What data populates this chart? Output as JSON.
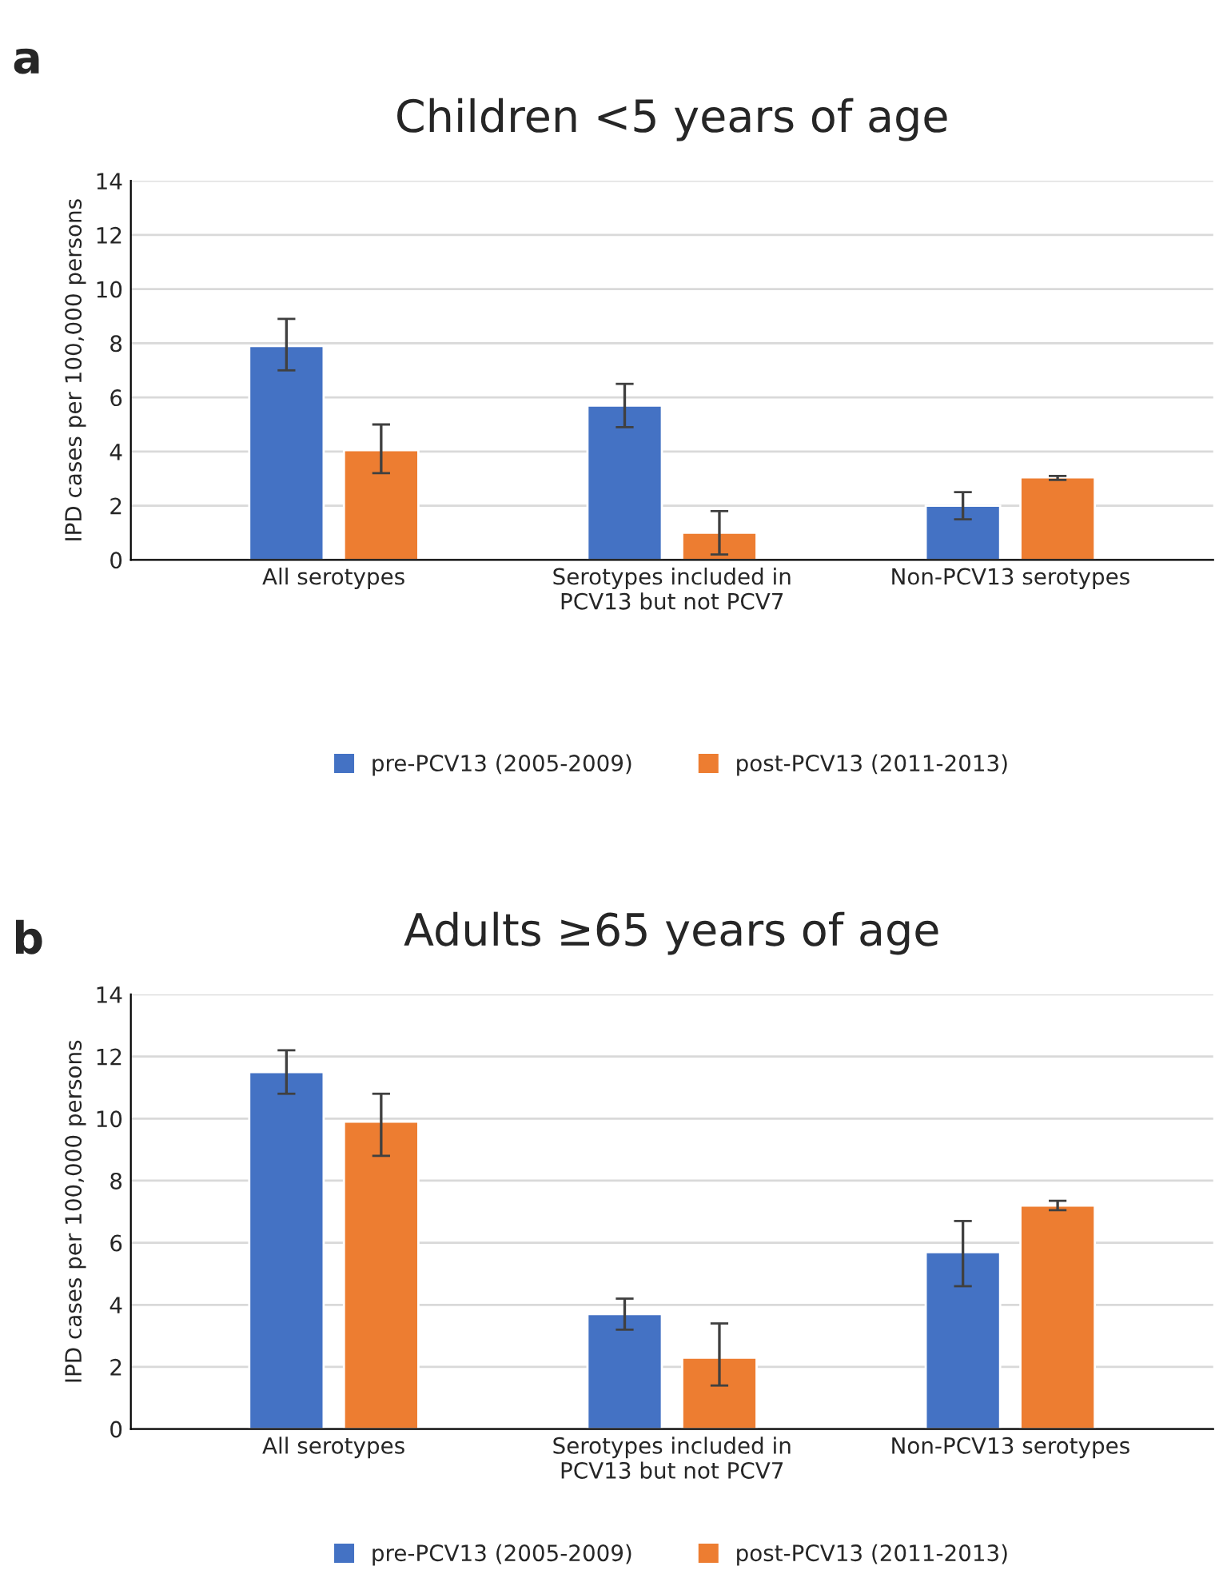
{
  "chart_data": [
    {
      "type": "bar",
      "title": "Children <5 years of age",
      "ylabel": "IPD cases per 100,000 persons",
      "annotations": [
        "a"
      ],
      "categories": [
        "All serotypes",
        "Serotypes included in\nPCV13 but not PCV7",
        "Non-PCV13 serotypes"
      ],
      "series": [
        {
          "name": "pre-PCV13 (2005-2009)",
          "color": "#4472c4",
          "values": [
            7.9,
            5.7,
            2.0
          ],
          "errors": [
            [
              7.0,
              8.9
            ],
            [
              4.9,
              6.5
            ],
            [
              1.5,
              2.5
            ]
          ]
        },
        {
          "name": "post-PCV13 (2011-2013)",
          "color": "#ed7d31",
          "values": [
            4.05,
            1.0,
            3.05
          ],
          "errors": [
            [
              3.2,
              5.0
            ],
            [
              0.2,
              1.8
            ],
            [
              2.95,
              3.1
            ]
          ]
        }
      ],
      "ylim": [
        0,
        14
      ],
      "yticks": [
        0,
        2,
        4,
        6,
        8,
        10,
        12,
        14
      ],
      "grid": "y",
      "legend": "bottom"
    },
    {
      "type": "bar",
      "title": "Adults ≥65 years of age",
      "ylabel": "IPD cases per 100,000 persons",
      "annotations": [
        "b"
      ],
      "categories": [
        "All serotypes",
        "Serotypes included in\nPCV13 but not PCV7",
        "Non-PCV13 serotypes"
      ],
      "series": [
        {
          "name": "pre-PCV13 (2005-2009)",
          "color": "#4472c4",
          "values": [
            11.5,
            3.7,
            5.7
          ],
          "errors": [
            [
              10.8,
              12.2
            ],
            [
              3.2,
              4.2
            ],
            [
              4.6,
              6.7
            ]
          ]
        },
        {
          "name": "post-PCV13 (2011-2013)",
          "color": "#ed7d31",
          "values": [
            9.9,
            2.3,
            7.2
          ],
          "errors": [
            [
              8.8,
              10.8
            ],
            [
              1.4,
              3.4
            ],
            [
              7.05,
              7.35
            ]
          ]
        }
      ],
      "ylim": [
        0,
        14
      ],
      "yticks": [
        0,
        2,
        4,
        6,
        8,
        10,
        12,
        14
      ],
      "grid": "y",
      "legend": "bottom"
    }
  ]
}
